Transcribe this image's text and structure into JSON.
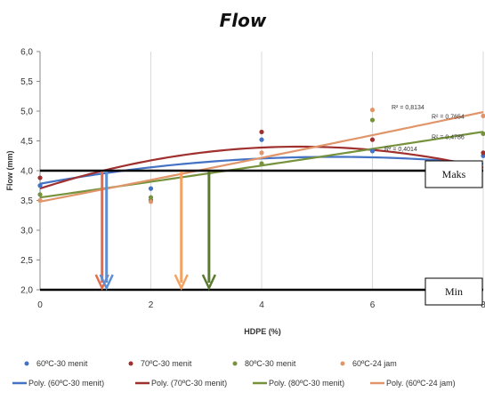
{
  "chart_data": {
    "type": "scatter",
    "title": "Flow",
    "xlabel": "HDPE (%)",
    "ylabel": "Flow (mm)",
    "xlim": [
      0,
      8
    ],
    "ylim": [
      2.0,
      6.0
    ],
    "xticks": [
      "0",
      "2",
      "4",
      "6",
      "8"
    ],
    "yticks": [
      "2,0",
      "2,5",
      "3,0",
      "3,5",
      "4,0",
      "4,5",
      "5,0",
      "5,5",
      "6,0"
    ],
    "grid": "vertical",
    "legend_position": "bottom",
    "series": [
      {
        "name": "60ºC-30 menit",
        "color": "#4472c4",
        "x": [
          0,
          2,
          4,
          6,
          8
        ],
        "y": [
          3.75,
          3.7,
          4.52,
          4.33,
          4.25
        ],
        "trend_name": "Poly. (60ºC-30 menit)",
        "trend_coeffs": [
          3.78,
          0.17,
          -0.016
        ],
        "r2": "R² = 0,4014"
      },
      {
        "name": "70ºC-30 menit",
        "color": "#a0302d",
        "x": [
          0,
          2,
          4,
          6,
          8
        ],
        "y": [
          3.88,
          3.5,
          4.65,
          4.52,
          4.3
        ],
        "trend_name": "Poly. (70ºC-30 menit)",
        "trend_coeffs": [
          3.7,
          0.3,
          -0.032
        ],
        "r2": "R² = 0,4786"
      },
      {
        "name": "80ºC-30 menit",
        "color": "#76923c",
        "x": [
          0,
          2,
          4,
          6,
          8
        ],
        "y": [
          3.6,
          3.55,
          4.12,
          4.85,
          4.62
        ],
        "trend_name": "Poly. (80ºC-30 menit)",
        "trend_coeffs": [
          3.55,
          0.13,
          0.001
        ],
        "r2": "R² = 0,7654"
      },
      {
        "name": "60ºC-24 jam",
        "color": "#e0956a",
        "x": [
          0,
          2,
          4,
          6,
          8
        ],
        "y": [
          3.5,
          3.48,
          4.3,
          5.02,
          4.92
        ],
        "trend_name": "Poly. (60ºC-24 jam)",
        "trend_coeffs": [
          3.48,
          0.18,
          0.001
        ],
        "r2": "R² = 0,8134"
      }
    ],
    "reference_lines": [
      {
        "label": "Maks",
        "y": 4.0
      },
      {
        "label": "Min",
        "y": 2.0
      }
    ],
    "arrows": [
      {
        "x": 1.12,
        "color": "#e36c4b"
      },
      {
        "x": 1.2,
        "color": "#5b8fd6"
      },
      {
        "x": 2.55,
        "color": "#f4a261"
      },
      {
        "x": 3.05,
        "color": "#5a7a2e"
      }
    ]
  }
}
